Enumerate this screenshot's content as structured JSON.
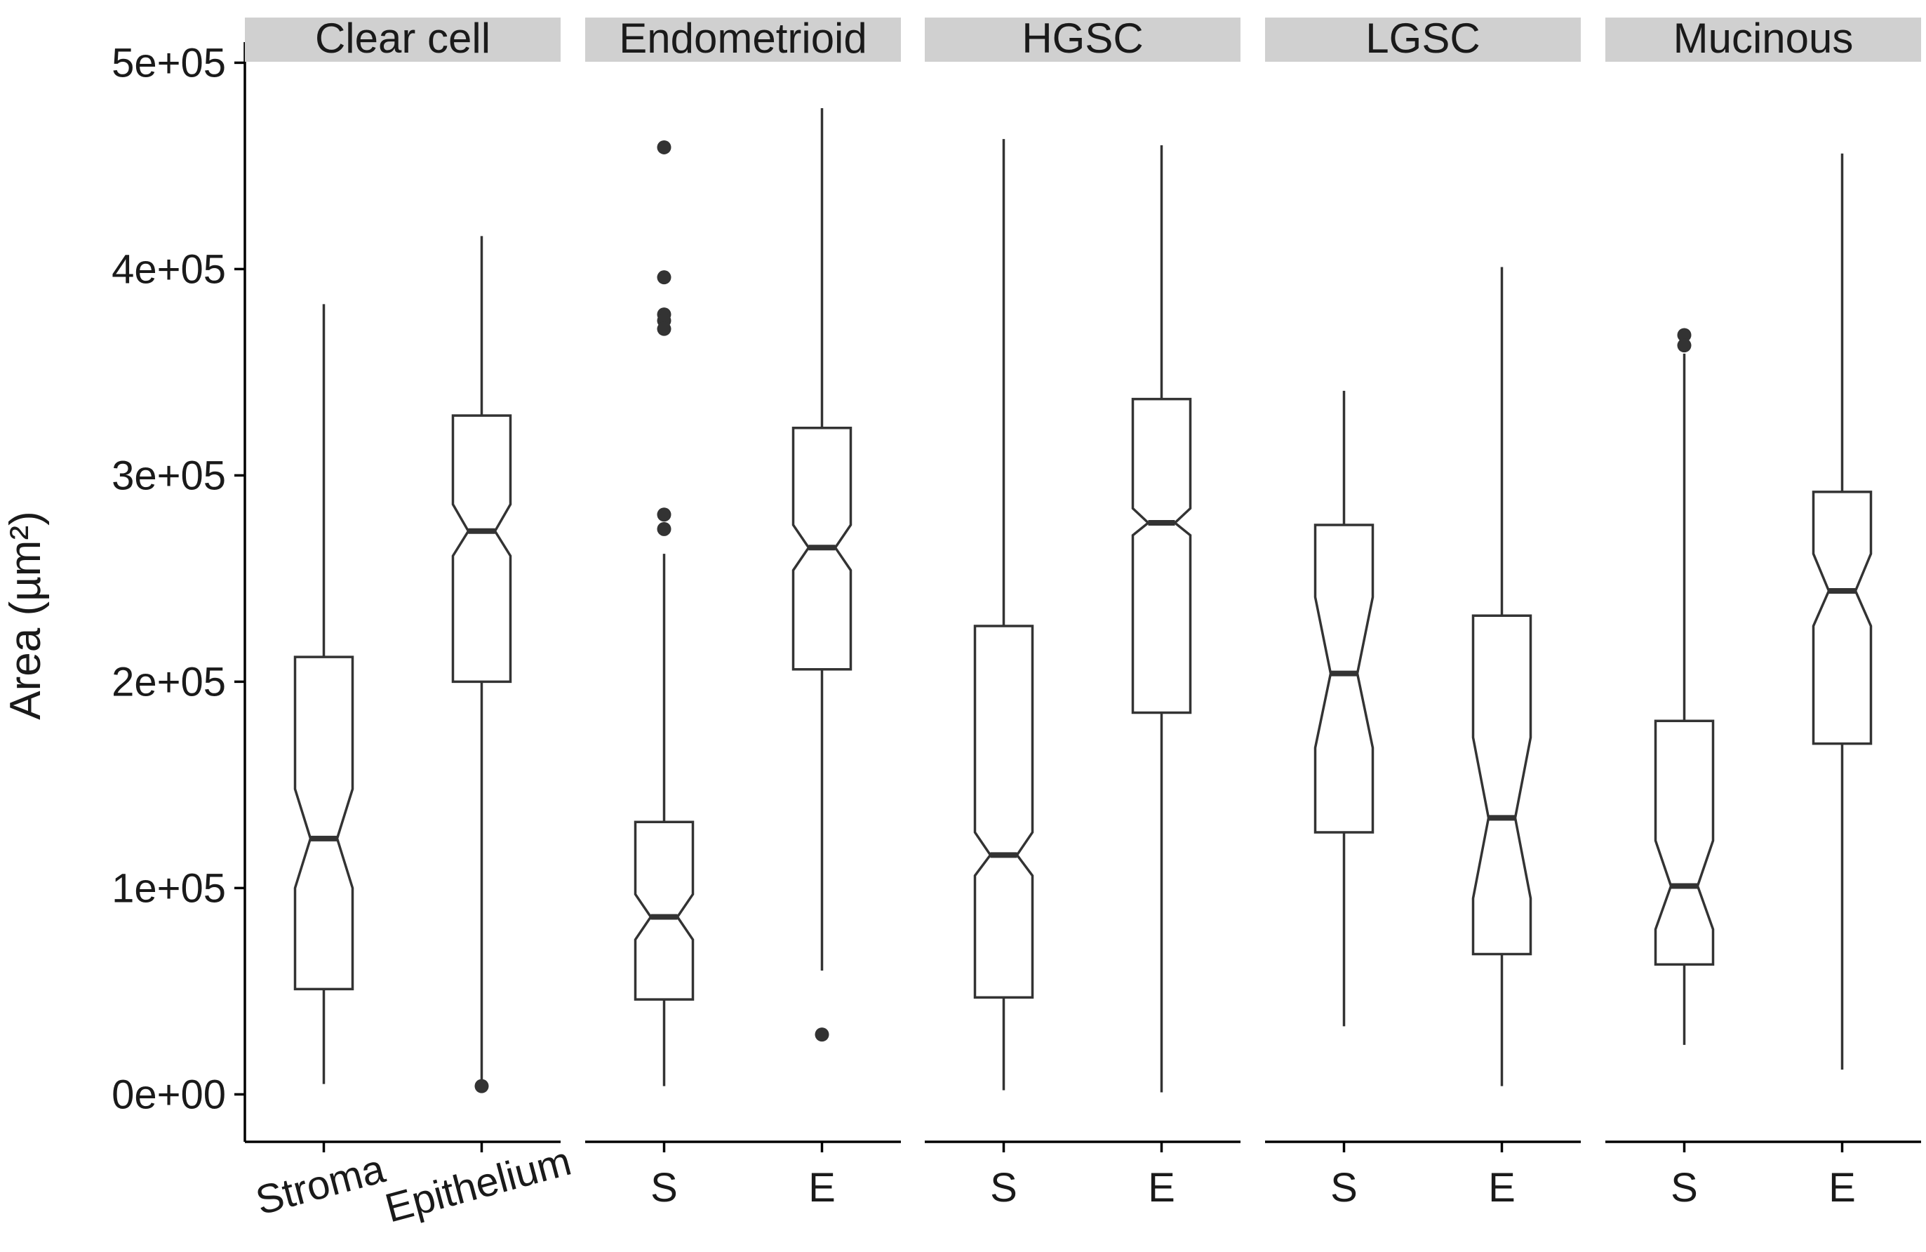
{
  "chart_data": {
    "type": "boxplot",
    "ylabel": "Area (µm²)",
    "ylim": [
      -23000,
      510000
    ],
    "yticks": [
      0,
      100000,
      200000,
      300000,
      400000,
      500000
    ],
    "ytick_labels": [
      "0e+00",
      "1e+05",
      "2e+05",
      "3e+05",
      "4e+05",
      "5e+05"
    ],
    "colors": {
      "box_stroke": "#333333",
      "strip_fill": "#d0d0d0",
      "outlier": "#333333"
    },
    "panels": [
      {
        "title": "Clear cell",
        "categories": [
          "Stroma",
          "Epithelium"
        ],
        "tick_rotation": -15,
        "boxes": [
          {
            "whisker_low": 5000,
            "q1": 51000,
            "median": 124000,
            "q3": 212000,
            "whisker_high": 383000,
            "notch_low": 100000,
            "notch_high": 148000,
            "outliers": []
          },
          {
            "whisker_low": 4000,
            "q1": 200000,
            "median": 273000,
            "q3": 329000,
            "whisker_high": 416000,
            "notch_low": 261000,
            "notch_high": 286000,
            "outliers": [
              4000
            ]
          }
        ]
      },
      {
        "title": "Endometrioid",
        "categories": [
          "S",
          "E"
        ],
        "tick_rotation": 0,
        "boxes": [
          {
            "whisker_low": 4000,
            "q1": 46000,
            "median": 86000,
            "q3": 132000,
            "whisker_high": 262000,
            "notch_low": 75000,
            "notch_high": 97000,
            "outliers": [
              459000,
              396000,
              378000,
              375000,
              371000,
              281000,
              274000
            ]
          },
          {
            "whisker_low": 60000,
            "q1": 206000,
            "median": 265000,
            "q3": 323000,
            "whisker_high": 478000,
            "notch_low": 254000,
            "notch_high": 276000,
            "outliers": [
              29000
            ]
          }
        ]
      },
      {
        "title": "HGSC",
        "categories": [
          "S",
          "E"
        ],
        "tick_rotation": 0,
        "boxes": [
          {
            "whisker_low": 2000,
            "q1": 47000,
            "median": 116000,
            "q3": 227000,
            "whisker_high": 463000,
            "notch_low": 106000,
            "notch_high": 127000,
            "outliers": []
          },
          {
            "whisker_low": 1000,
            "q1": 185000,
            "median": 277000,
            "q3": 337000,
            "whisker_high": 460000,
            "notch_low": 271000,
            "notch_high": 284000,
            "outliers": []
          }
        ]
      },
      {
        "title": "LGSC",
        "categories": [
          "S",
          "E"
        ],
        "tick_rotation": 0,
        "boxes": [
          {
            "whisker_low": 33000,
            "q1": 127000,
            "median": 204000,
            "q3": 276000,
            "whisker_high": 341000,
            "notch_low": 168000,
            "notch_high": 241000,
            "outliers": []
          },
          {
            "whisker_low": 4000,
            "q1": 68000,
            "median": 134000,
            "q3": 232000,
            "whisker_high": 401000,
            "notch_low": 95000,
            "notch_high": 173000,
            "outliers": []
          }
        ]
      },
      {
        "title": "Mucinous",
        "categories": [
          "S",
          "E"
        ],
        "tick_rotation": 0,
        "boxes": [
          {
            "whisker_low": 24000,
            "q1": 63000,
            "median": 101000,
            "q3": 181000,
            "whisker_high": 359000,
            "notch_low": 80000,
            "notch_high": 123000,
            "outliers": [
              368000,
              363000
            ]
          },
          {
            "whisker_low": 12000,
            "q1": 170000,
            "median": 244000,
            "q3": 292000,
            "whisker_high": 456000,
            "notch_low": 227000,
            "notch_high": 262000,
            "outliers": []
          }
        ]
      }
    ]
  }
}
